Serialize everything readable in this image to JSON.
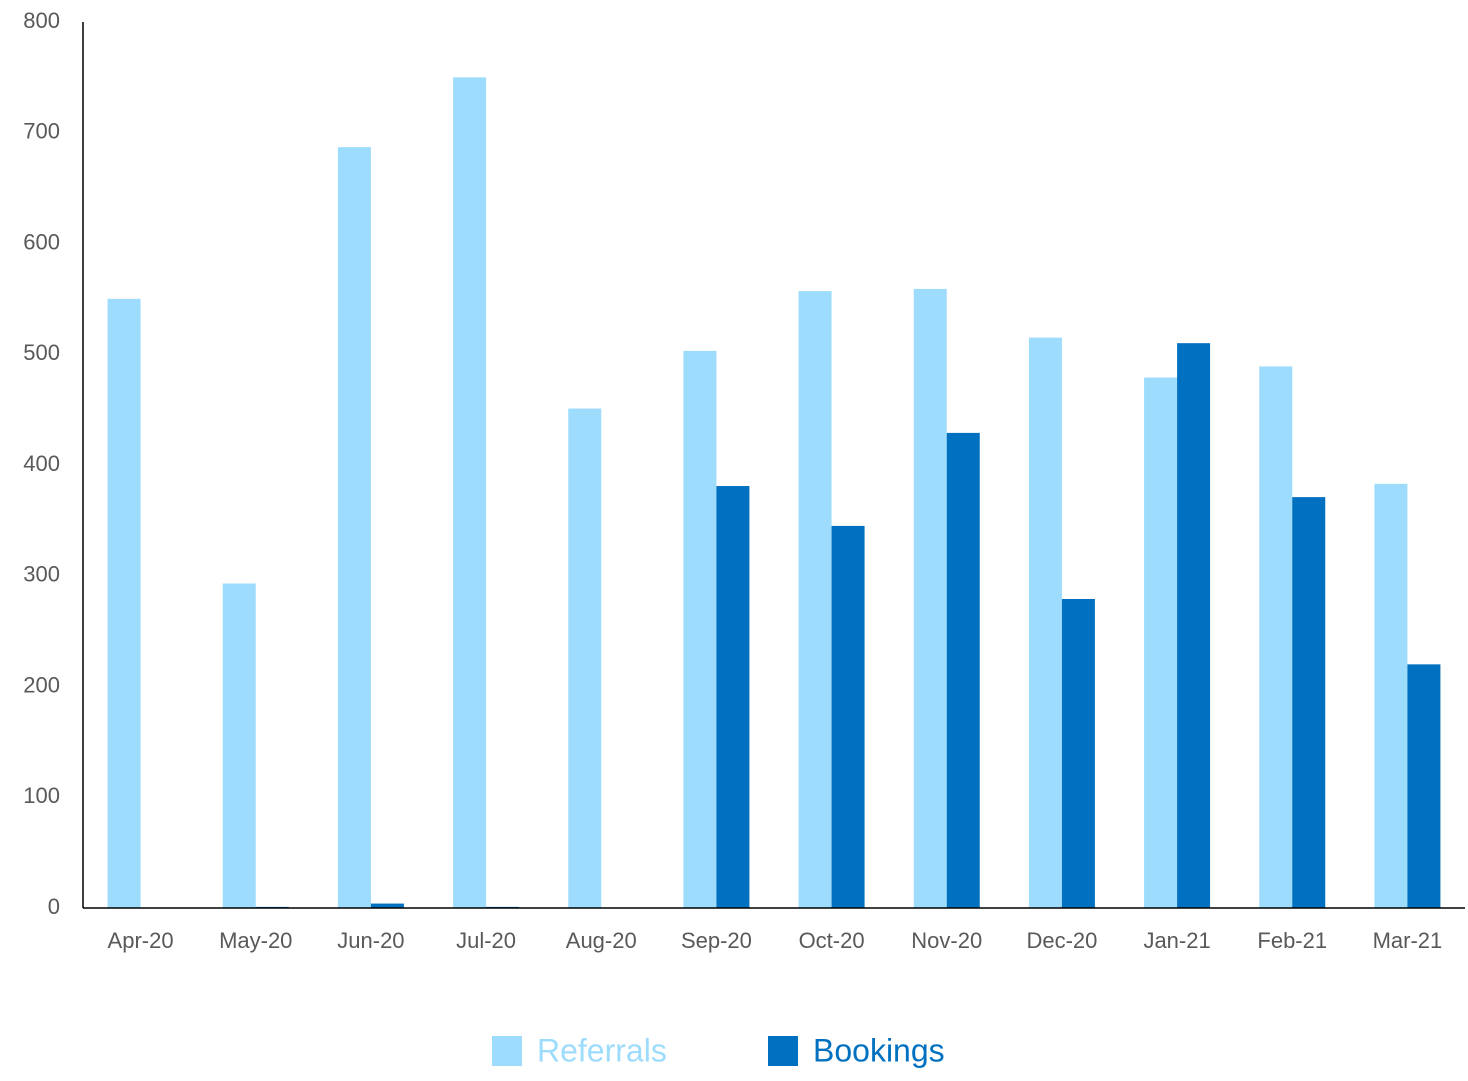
{
  "chart_data": {
    "type": "bar",
    "categories": [
      "Apr-20",
      "May-20",
      "Jun-20",
      "Jul-20",
      "Aug-20",
      "Sep-20",
      "Oct-20",
      "Nov-20",
      "Dec-20",
      "Jan-21",
      "Feb-21",
      "Mar-21"
    ],
    "series": [
      {
        "name": "Referrals",
        "color": "#9ddcfc",
        "values": [
          550,
          293,
          687,
          750,
          451,
          503,
          557,
          559,
          515,
          479,
          489,
          383
        ]
      },
      {
        "name": "Bookings",
        "color": "#0070c0",
        "values": [
          0,
          1,
          4,
          1,
          0,
          381,
          345,
          429,
          279,
          510,
          371,
          220
        ]
      }
    ],
    "ylim": [
      0,
      800
    ],
    "yticks": [
      0,
      100,
      200,
      300,
      400,
      500,
      600,
      700,
      800
    ],
    "grid": false,
    "legend": "bottom"
  }
}
